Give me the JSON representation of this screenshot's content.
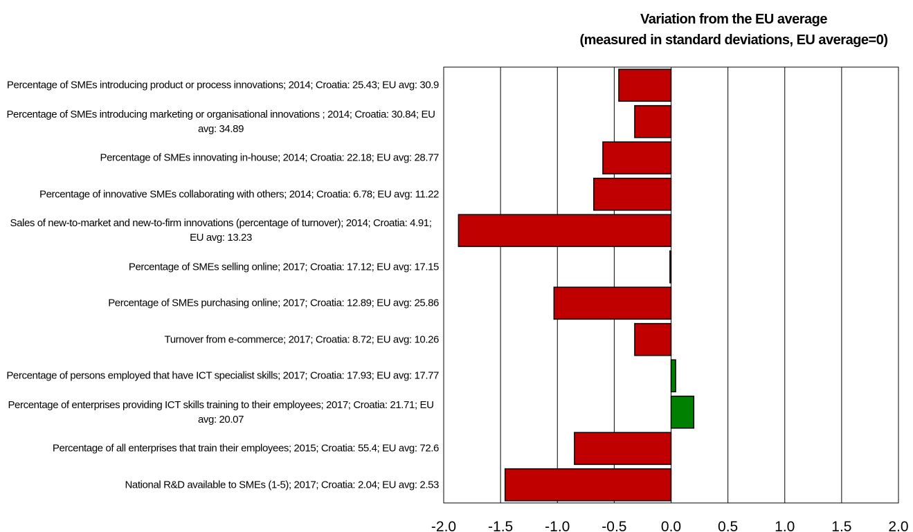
{
  "chart_data": {
    "type": "barh",
    "title": [
      "Variation from the EU average",
      "(measured in standard deviations, EU average=0)"
    ],
    "categories": [
      "Percentage of SMEs introducing product or process innovations; 2014; Croatia: 25.43; EU avg: 30.9",
      "Percentage of SMEs introducing marketing or organisational innovations ; 2014; Croatia: 30.84; EU avg: 34.89",
      "Percentage of SMEs innovating in-house; 2014; Croatia: 22.18; EU avg: 28.77",
      "Percentage of innovative SMEs collaborating with others; 2014; Croatia: 6.78; EU avg: 11.22",
      "Sales of new-to-market and new-to-firm innovations (percentage of turnover); 2014; Croatia: 4.91; EU avg: 13.23",
      "Percentage of SMEs selling online; 2017; Croatia: 17.12; EU avg: 17.15",
      "Percentage of SMEs purchasing online; 2017; Croatia: 12.89; EU avg: 25.86",
      "Turnover from e-commerce; 2017; Croatia: 8.72; EU avg: 10.26",
      "Percentage of persons employed that have ICT specialist skills; 2017; Croatia: 17.93; EU avg: 17.77",
      "Percentage of enterprises providing ICT skills training to their employees; 2017; Croatia: 21.71; EU avg: 20.07",
      "Percentage of all enterprises that train their employees; 2015; Croatia: 55.4; EU avg: 72.6",
      "National R&D available to SMEs (1-5); 2017; Croatia: 2.04; EU avg: 2.53"
    ],
    "values": [
      -0.46,
      -0.32,
      -0.6,
      -0.68,
      -1.87,
      -0.01,
      -1.03,
      -0.32,
      0.04,
      0.2,
      -0.85,
      -1.46
    ],
    "colors": [
      "#c00000",
      "#c00000",
      "#c00000",
      "#c00000",
      "#c00000",
      "#c00000",
      "#c00000",
      "#c00000",
      "#008000",
      "#008000",
      "#c00000",
      "#c00000"
    ],
    "xlim": [
      -2,
      2
    ],
    "xticks": [
      {
        "value": -2,
        "label": "-2.0"
      },
      -1.5,
      {
        "value": -1,
        "label": "-1.0"
      },
      -0.5,
      {
        "value": 0,
        "label": "0.0"
      },
      0.5,
      {
        "value": 1,
        "label": "1.0"
      },
      1.5,
      {
        "value": 2,
        "label": "2.0"
      }
    ],
    "grid": true
  }
}
